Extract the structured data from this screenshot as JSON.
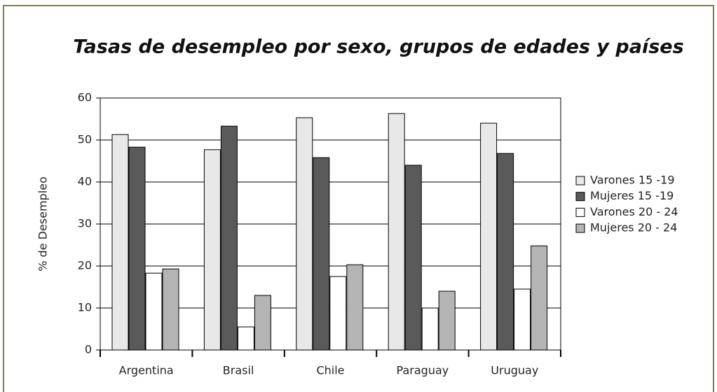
{
  "chart_data": {
    "type": "bar",
    "title": "Tasas de desempleo por sexo, grupos de edades y países",
    "y_label": "% de Desempleo",
    "categories": [
      "Argentina",
      "Brasil",
      "Chile",
      "Paraguay",
      "Uruguay"
    ],
    "series": [
      {
        "name": "Varones 15 -19",
        "color": "#e8e8e8",
        "values": [
          51.3,
          47.7,
          55.3,
          56.3,
          54
        ]
      },
      {
        "name": "Mujeres 15 -19",
        "color": "#5a5a5a",
        "values": [
          48.3,
          53.3,
          45.8,
          44,
          46.8
        ]
      },
      {
        "name": "Varones 20 - 24",
        "color": "#ffffff",
        "values": [
          18.3,
          5.5,
          17.5,
          10,
          14.5
        ]
      },
      {
        "name": "Mujeres 20 - 24",
        "color": "#b4b4b4",
        "values": [
          19.3,
          13,
          20.3,
          14,
          24.8
        ]
      }
    ],
    "ylim": [
      0,
      60
    ],
    "yticks": [
      0,
      10,
      20,
      30,
      40,
      50,
      60
    ],
    "grid": true,
    "legend": "right"
  }
}
